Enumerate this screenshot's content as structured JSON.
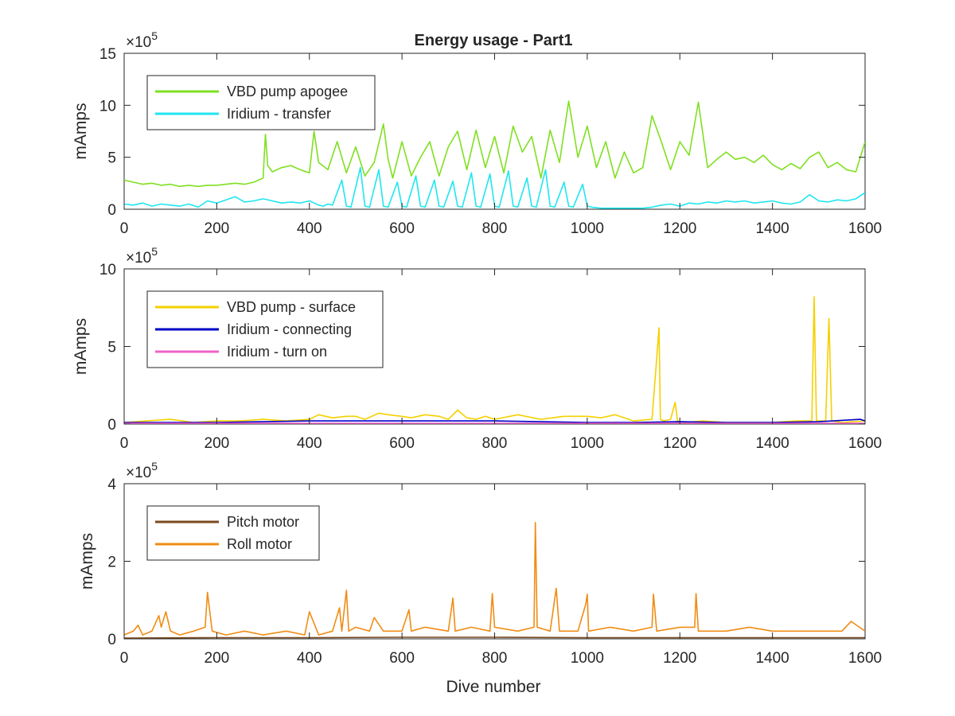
{
  "figure": {
    "title": "Energy usage - Part1",
    "xlabel": "Dive number"
  },
  "chart_data": [
    {
      "type": "line",
      "title": "Energy usage - Part1",
      "xlabel": "",
      "ylabel": "mAmps",
      "exponent_label": "× 10^5",
      "exponent_base": "×10",
      "exponent_power": "5",
      "xlim": [
        0,
        1600
      ],
      "ylim": [
        0,
        15
      ],
      "xticks": [
        "0",
        "200",
        "400",
        "600",
        "800",
        "1000",
        "1200",
        "1400",
        "1600"
      ],
      "yticks": [
        "0",
        "5",
        "10",
        "15"
      ],
      "ytick_values": [
        0,
        5,
        10,
        15
      ],
      "legend_position": "top-left",
      "series": [
        {
          "name": "VBD pump apogee",
          "color": "#7FE020",
          "x": [
            0,
            20,
            40,
            60,
            80,
            100,
            120,
            140,
            160,
            180,
            200,
            220,
            240,
            260,
            280,
            300,
            305,
            310,
            320,
            340,
            360,
            380,
            400,
            410,
            420,
            440,
            460,
            480,
            500,
            520,
            540,
            560,
            570,
            580,
            600,
            620,
            640,
            660,
            680,
            700,
            720,
            740,
            760,
            780,
            800,
            820,
            840,
            860,
            880,
            900,
            920,
            940,
            960,
            980,
            1000,
            1020,
            1040,
            1060,
            1080,
            1100,
            1120,
            1140,
            1160,
            1180,
            1200,
            1220,
            1240,
            1260,
            1280,
            1300,
            1320,
            1340,
            1360,
            1380,
            1400,
            1420,
            1440,
            1460,
            1480,
            1500,
            1520,
            1540,
            1560,
            1580,
            1600
          ],
          "y": [
            2.8,
            2.6,
            2.4,
            2.5,
            2.3,
            2.4,
            2.2,
            2.3,
            2.2,
            2.3,
            2.3,
            2.4,
            2.5,
            2.4,
            2.6,
            3.0,
            7.2,
            4.2,
            3.6,
            4.0,
            4.2,
            3.8,
            3.5,
            7.5,
            4.5,
            3.8,
            6.5,
            3.5,
            6.0,
            3.2,
            4.5,
            8.2,
            4.8,
            3.0,
            6.5,
            3.2,
            5.0,
            6.5,
            3.2,
            6.0,
            7.5,
            3.8,
            7.6,
            4.0,
            7.0,
            3.5,
            8.0,
            5.5,
            7.0,
            3.0,
            7.6,
            4.5,
            10.4,
            5.0,
            8.0,
            4.0,
            6.5,
            3.0,
            5.5,
            3.5,
            4.0,
            9.0,
            6.5,
            3.8,
            6.5,
            5.2,
            10.3,
            4.0,
            4.8,
            5.5,
            4.8,
            5.0,
            4.5,
            5.2,
            4.3,
            3.8,
            4.4,
            3.9,
            5.0,
            5.5,
            4.0,
            4.5,
            3.8,
            3.6,
            6.5
          ]
        },
        {
          "name": "Iridium - transfer",
          "color": "#1EE6F0",
          "x": [
            0,
            20,
            40,
            60,
            80,
            100,
            120,
            140,
            160,
            180,
            200,
            220,
            240,
            260,
            280,
            300,
            320,
            340,
            360,
            380,
            400,
            420,
            430,
            440,
            450,
            470,
            480,
            490,
            510,
            520,
            530,
            550,
            560,
            570,
            590,
            600,
            610,
            630,
            640,
            650,
            670,
            680,
            690,
            710,
            720,
            730,
            750,
            760,
            770,
            790,
            800,
            810,
            830,
            840,
            850,
            870,
            880,
            890,
            910,
            920,
            930,
            950,
            960,
            970,
            990,
            1000,
            1010,
            1030,
            1040,
            1060,
            1080,
            1100,
            1120,
            1140,
            1160,
            1180,
            1200,
            1220,
            1240,
            1260,
            1280,
            1300,
            1320,
            1340,
            1360,
            1380,
            1400,
            1420,
            1440,
            1460,
            1480,
            1500,
            1520,
            1540,
            1560,
            1580,
            1600
          ],
          "y": [
            0.5,
            0.4,
            0.6,
            0.3,
            0.5,
            0.4,
            0.3,
            0.5,
            0.2,
            0.8,
            0.6,
            0.9,
            1.2,
            0.7,
            0.8,
            1.0,
            0.8,
            0.6,
            0.7,
            0.6,
            0.8,
            0.4,
            0.3,
            0.5,
            0.4,
            2.8,
            0.3,
            0.2,
            4.0,
            0.3,
            0.2,
            3.8,
            0.3,
            0.2,
            2.6,
            0.3,
            0.2,
            3.2,
            0.3,
            0.2,
            2.8,
            0.3,
            0.2,
            2.7,
            0.3,
            0.2,
            3.5,
            0.3,
            0.2,
            3.4,
            0.3,
            0.2,
            3.7,
            0.3,
            0.2,
            3.0,
            0.3,
            0.2,
            3.8,
            0.3,
            0.2,
            2.6,
            0.3,
            0.2,
            2.4,
            0.3,
            0.2,
            0.1,
            0.1,
            0.1,
            0.1,
            0.1,
            0.1,
            0.2,
            0.4,
            0.5,
            0.3,
            0.6,
            0.5,
            0.7,
            0.6,
            0.8,
            0.7,
            0.8,
            0.6,
            0.7,
            0.8,
            0.6,
            0.5,
            0.7,
            1.4,
            0.8,
            0.7,
            0.9,
            0.8,
            1.0,
            1.6
          ]
        }
      ]
    },
    {
      "type": "line",
      "xlabel": "",
      "ylabel": "mAmps",
      "exponent_label": "× 10^5",
      "exponent_base": "×10",
      "exponent_power": "5",
      "xlim": [
        0,
        1600
      ],
      "ylim": [
        0,
        10
      ],
      "xticks": [
        "0",
        "200",
        "400",
        "600",
        "800",
        "1000",
        "1200",
        "1400",
        "1600"
      ],
      "yticks": [
        "0",
        "5",
        "10"
      ],
      "ytick_values": [
        0,
        5,
        10
      ],
      "legend_position": "top-left",
      "series": [
        {
          "name": "VBD pump - surface",
          "color": "#F5D000",
          "x": [
            0,
            50,
            100,
            150,
            200,
            250,
            300,
            350,
            400,
            420,
            450,
            480,
            500,
            520,
            550,
            570,
            600,
            620,
            650,
            680,
            700,
            720,
            740,
            760,
            780,
            800,
            850,
            900,
            950,
            1000,
            1030,
            1060,
            1100,
            1140,
            1155,
            1158,
            1165,
            1180,
            1190,
            1195,
            1210,
            1250,
            1300,
            1350,
            1400,
            1450,
            1485,
            1490,
            1495,
            1515,
            1522,
            1528,
            1550,
            1600
          ],
          "y": [
            0.1,
            0.2,
            0.3,
            0.1,
            0.2,
            0.2,
            0.3,
            0.2,
            0.3,
            0.6,
            0.4,
            0.5,
            0.5,
            0.3,
            0.7,
            0.6,
            0.5,
            0.4,
            0.6,
            0.5,
            0.3,
            0.9,
            0.4,
            0.3,
            0.5,
            0.3,
            0.6,
            0.3,
            0.5,
            0.5,
            0.4,
            0.6,
            0.2,
            0.3,
            6.2,
            0.3,
            0.2,
            0.3,
            1.4,
            0.2,
            0.1,
            0.2,
            0.1,
            0.1,
            0.1,
            0.2,
            0.2,
            8.2,
            0.2,
            0.2,
            6.8,
            0.2,
            0.1,
            0.2
          ]
        },
        {
          "name": "Iridium - connecting",
          "color": "#0000C8",
          "x": [
            0,
            100,
            200,
            300,
            400,
            500,
            600,
            700,
            800,
            900,
            1000,
            1100,
            1200,
            1300,
            1400,
            1500,
            1590,
            1600
          ],
          "y": [
            0.1,
            0.1,
            0.1,
            0.15,
            0.2,
            0.2,
            0.2,
            0.2,
            0.2,
            0.15,
            0.1,
            0.1,
            0.15,
            0.1,
            0.1,
            0.15,
            0.3,
            0.2
          ]
        },
        {
          "name": "Iridium - turn on",
          "color": "#F060C8",
          "x": [
            0,
            200,
            400,
            600,
            800,
            1000,
            1200,
            1400,
            1600
          ],
          "y": [
            0.05,
            0.05,
            0.05,
            0.05,
            0.05,
            0.05,
            0.05,
            0.05,
            0.05
          ]
        }
      ]
    },
    {
      "type": "line",
      "xlabel": "Dive number",
      "ylabel": "mAmps",
      "exponent_label": "× 10^5",
      "exponent_base": "×10",
      "exponent_power": "5",
      "xlim": [
        0,
        1600
      ],
      "ylim": [
        0,
        4
      ],
      "xticks": [
        "0",
        "200",
        "400",
        "600",
        "800",
        "1000",
        "1200",
        "1400",
        "1600"
      ],
      "yticks": [
        "0",
        "2",
        "4"
      ],
      "ytick_values": [
        0,
        2,
        4
      ],
      "legend_position": "top-left",
      "series": [
        {
          "name": "Pitch motor",
          "color": "#7A4A1E",
          "x": [
            0,
            200,
            400,
            600,
            800,
            1000,
            1200,
            1400,
            1600
          ],
          "y": [
            0.02,
            0.03,
            0.03,
            0.04,
            0.04,
            0.03,
            0.03,
            0.03,
            0.03
          ]
        },
        {
          "name": "Roll motor",
          "color": "#F08C14",
          "x": [
            0,
            20,
            30,
            40,
            60,
            75,
            80,
            90,
            100,
            120,
            150,
            175,
            180,
            190,
            220,
            260,
            300,
            350,
            390,
            400,
            420,
            450,
            465,
            470,
            480,
            485,
            500,
            530,
            540,
            560,
            600,
            615,
            620,
            650,
            700,
            710,
            715,
            750,
            790,
            795,
            800,
            850,
            885,
            888,
            892,
            920,
            933,
            940,
            980,
            997,
            1000,
            1003,
            1050,
            1100,
            1140,
            1143,
            1150,
            1200,
            1232,
            1235,
            1240,
            1300,
            1350,
            1400,
            1450,
            1500,
            1550,
            1570,
            1600
          ],
          "y": [
            0.1,
            0.2,
            0.35,
            0.1,
            0.2,
            0.6,
            0.3,
            0.7,
            0.2,
            0.1,
            0.2,
            0.3,
            1.2,
            0.2,
            0.1,
            0.2,
            0.1,
            0.2,
            0.1,
            0.7,
            0.1,
            0.2,
            0.8,
            0.2,
            1.25,
            0.2,
            0.3,
            0.2,
            0.55,
            0.2,
            0.2,
            0.75,
            0.2,
            0.3,
            0.2,
            1.05,
            0.2,
            0.3,
            0.2,
            1.17,
            0.3,
            0.2,
            0.3,
            3.0,
            0.3,
            0.2,
            1.3,
            0.2,
            0.2,
            0.9,
            1.15,
            0.2,
            0.3,
            0.2,
            0.3,
            1.15,
            0.2,
            0.3,
            0.3,
            1.17,
            0.2,
            0.2,
            0.3,
            0.2,
            0.2,
            0.2,
            0.2,
            0.45,
            0.2
          ]
        }
      ]
    }
  ]
}
